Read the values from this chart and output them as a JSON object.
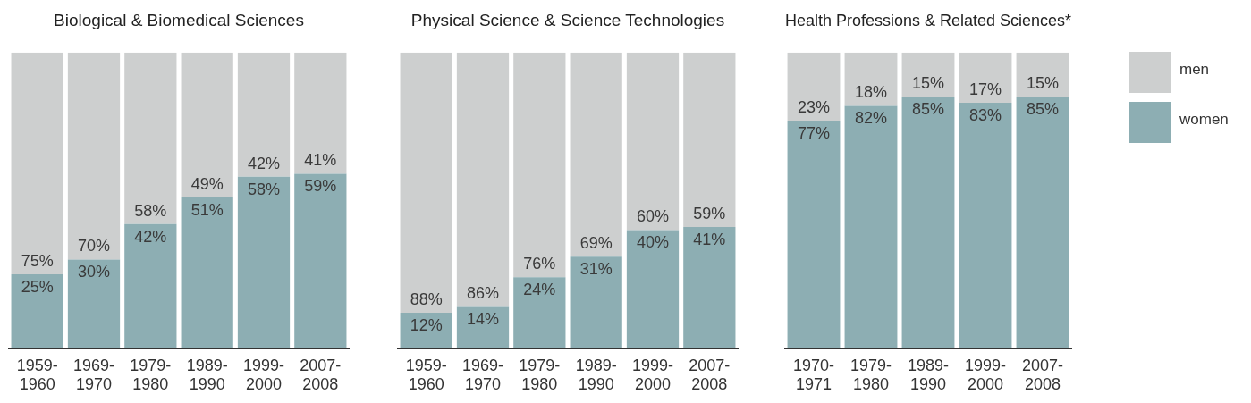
{
  "chart_data": [
    {
      "type": "bar",
      "title": "Biological & Biomedical Sciences",
      "stacked": true,
      "ylim": [
        0,
        100
      ],
      "tick_labels": "x",
      "grid": false,
      "legend": false,
      "categories": [
        "1959-1960",
        "1969-1970",
        "1979-1980",
        "1989-1990",
        "1999-2000",
        "2007-2008"
      ],
      "series": [
        {
          "color": "#8daeb3",
          "values": [
            25,
            30,
            42,
            51,
            58,
            59
          ],
          "value_labels": [
            "25%",
            "30%",
            "42%",
            "51%",
            "58%",
            "59%"
          ]
        },
        {
          "color": "#cdcfcf",
          "values": [
            75,
            70,
            58,
            49,
            42,
            41
          ],
          "value_labels": [
            "75%",
            "70%",
            "58%",
            "49%",
            "42%",
            "41%"
          ]
        }
      ]
    },
    {
      "type": "bar",
      "title": "Physical Science & Science Technologies",
      "stacked": true,
      "ylim": [
        0,
        100
      ],
      "tick_labels": "x",
      "grid": false,
      "legend": false,
      "categories": [
        "1959-1960",
        "1969-1970",
        "1979-1980",
        "1989-1990",
        "1999-2000",
        "2007-2008"
      ],
      "series": [
        {
          "color": "#8daeb3",
          "values": [
            12,
            14,
            24,
            31,
            40,
            41
          ],
          "value_labels": [
            "12%",
            "14%",
            "24%",
            "31%",
            "40%",
            "41%"
          ]
        },
        {
          "color": "#cdcfcf",
          "values": [
            88,
            86,
            76,
            69,
            60,
            59
          ],
          "value_labels": [
            "88%",
            "86%",
            "76%",
            "69%",
            "60%",
            "59%"
          ]
        }
      ]
    },
    {
      "type": "bar",
      "title": "Health Professions & Related Sciences*",
      "stacked": true,
      "ylim": [
        0,
        100
      ],
      "tick_labels": "x",
      "grid": false,
      "legend": "top right",
      "categories": [
        "1970-1971",
        "1979-1980",
        "1989-1990",
        "1999-2000",
        "2007-2008"
      ],
      "series": [
        {
          "name": "women",
          "color": "#8daeb3",
          "values": [
            77,
            82,
            85,
            83,
            85
          ],
          "value_labels": [
            "77%",
            "82%",
            "85%",
            "83%",
            "85%"
          ]
        },
        {
          "name": "men",
          "color": "#cdcfcf",
          "values": [
            23,
            18,
            15,
            17,
            15
          ],
          "value_labels": [
            "23%",
            "18%",
            "15%",
            "17%",
            "15%"
          ]
        }
      ]
    }
  ]
}
